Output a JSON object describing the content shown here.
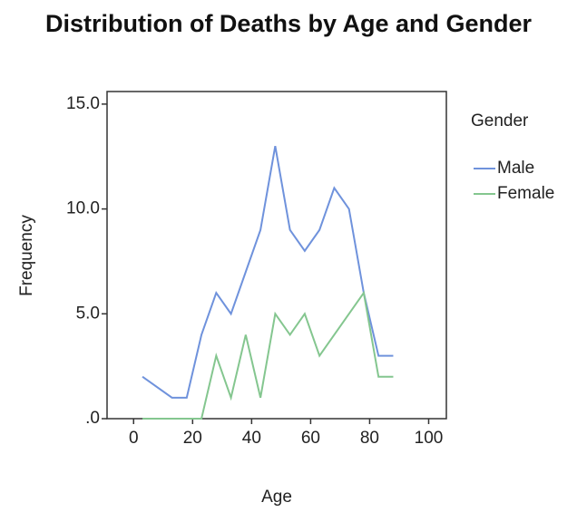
{
  "chart_data": {
    "type": "line",
    "title": "Distribution of Deaths by Age and Gender",
    "x_label": "Age",
    "y_label": "Frequency",
    "legend_title": "Gender",
    "legend": "right",
    "x": [
      3,
      13,
      18,
      23,
      28,
      33,
      38,
      43,
      48,
      53,
      58,
      63,
      68,
      73,
      78,
      83,
      88
    ],
    "series": [
      {
        "name": "Male",
        "color": "#6f92dc",
        "values": [
          2,
          1,
          1,
          4,
          6,
          5,
          7,
          9,
          13,
          9,
          8,
          9,
          11,
          10,
          6,
          3,
          3
        ]
      },
      {
        "name": "Female",
        "color": "#84c68f",
        "values": [
          0,
          0,
          0,
          0,
          3,
          1,
          4,
          1,
          5,
          4,
          5,
          3,
          4,
          5,
          6,
          2,
          2
        ]
      }
    ],
    "xlim": [
      -9,
      106
    ],
    "xticks": [
      0,
      20,
      40,
      60,
      80,
      100
    ],
    "ylim": [
      0,
      15.6
    ],
    "yticks": [
      {
        "value": 0,
        "label": ".0"
      },
      {
        "value": 5,
        "label": "5.0"
      },
      {
        "value": 10,
        "label": "10.0"
      },
      {
        "value": 15,
        "label": "15.0"
      }
    ]
  }
}
